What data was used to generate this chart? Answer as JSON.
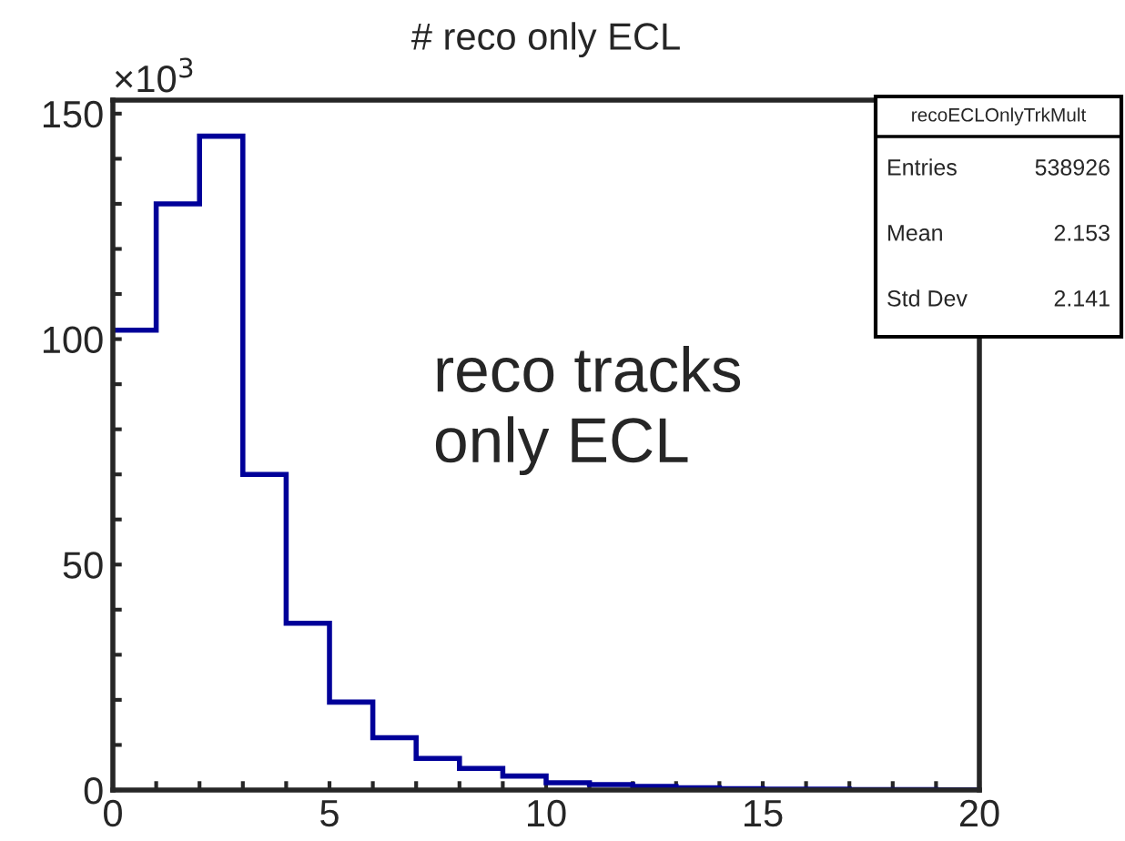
{
  "chart_data": {
    "type": "histogram",
    "title": "# reco only ECL",
    "bins": [
      0,
      1,
      2,
      3,
      4,
      5,
      6,
      7,
      8,
      9,
      10,
      11,
      12,
      13,
      14,
      15,
      16,
      17,
      18,
      19,
      20
    ],
    "values": [
      102,
      130,
      145,
      70,
      37,
      19.5,
      11.6,
      7,
      4.8,
      3.1,
      1.6,
      1.2,
      0.8,
      0.5,
      0.3,
      0.2,
      0.2,
      0.1,
      0.1,
      0.05
    ],
    "color": "#000099",
    "xlim": [
      0,
      20
    ],
    "ylim": [
      0,
      153
    ],
    "xticks": [
      0,
      {
        "value": 1,
        "label": null
      },
      {
        "value": 2,
        "label": null
      },
      {
        "value": 3,
        "label": null
      },
      {
        "value": 4,
        "label": null
      },
      5,
      {
        "value": 6,
        "label": null
      },
      {
        "value": 7,
        "label": null
      },
      {
        "value": 8,
        "label": null
      },
      {
        "value": 9,
        "label": null
      },
      10,
      {
        "value": 11,
        "label": null
      },
      {
        "value": 12,
        "label": null
      },
      {
        "value": 13,
        "label": null
      },
      {
        "value": 14,
        "label": null
      },
      15,
      {
        "value": 16,
        "label": null
      },
      {
        "value": 17,
        "label": null
      },
      {
        "value": 18,
        "label": null
      },
      {
        "value": 19,
        "label": null
      },
      20
    ],
    "yticks": [
      0,
      {
        "value": 10,
        "label": null
      },
      {
        "value": 20,
        "label": null
      },
      {
        "value": 30,
        "label": null
      },
      {
        "value": 40,
        "label": null
      },
      50,
      {
        "value": 60,
        "label": null
      },
      {
        "value": 70,
        "label": null
      },
      {
        "value": 80,
        "label": null
      },
      {
        "value": 90,
        "label": null
      },
      100,
      {
        "value": 110,
        "label": null
      },
      {
        "value": 120,
        "label": null
      },
      {
        "value": 130,
        "label": null
      },
      {
        "value": 140,
        "label": null
      },
      150
    ],
    "grid": false,
    "annotations": [
      "×10$^{3}$",
      "reco tracks\nonly ECL",
      "recoECLOnlyTrkMult",
      "Entries",
      "538926",
      "Mean",
      "2.153",
      "Std Dev",
      "2.141"
    ]
  }
}
